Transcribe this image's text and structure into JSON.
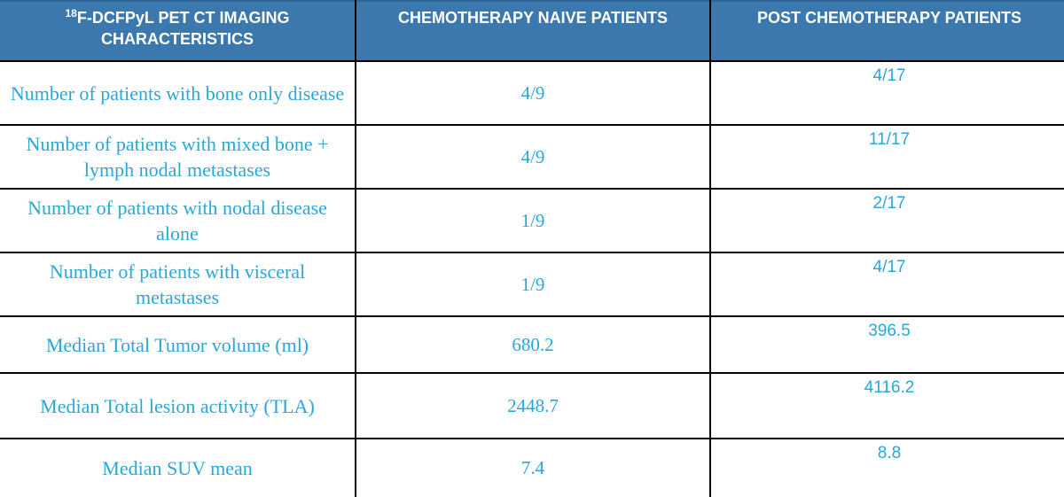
{
  "table": {
    "header": {
      "col1_sup": "18",
      "col1_line1_rest": "F-DCFPyL  PET CT IMAGING",
      "col1_line2": "CHARACTERISTICS",
      "col2": "CHEMOTHERAPY NAIVE PATIENTS",
      "col3": "POST CHEMOTHERAPY  PATIENTS"
    },
    "rows": [
      {
        "label": "Number of patients with bone only disease",
        "naive": "4/9",
        "post": "4/17"
      },
      {
        "label": "Number of patients with mixed bone + lymph nodal metastases",
        "naive": "4/9",
        "post": "11/17"
      },
      {
        "label": "Number of patients with nodal disease alone",
        "naive": "1/9",
        "post": "2/17"
      },
      {
        "label": "Number of patients with visceral metastases",
        "naive": "1/9",
        "post": "4/17"
      },
      {
        "label": "Median Total Tumor volume (ml)",
        "naive": "680.2",
        "post": "396.5"
      },
      {
        "label": "Median Total lesion activity  (TLA)",
        "naive": "2448.7",
        "post": "4116.2"
      },
      {
        "label": "Median SUV mean",
        "naive": "7.4",
        "post": "8.8"
      }
    ]
  }
}
